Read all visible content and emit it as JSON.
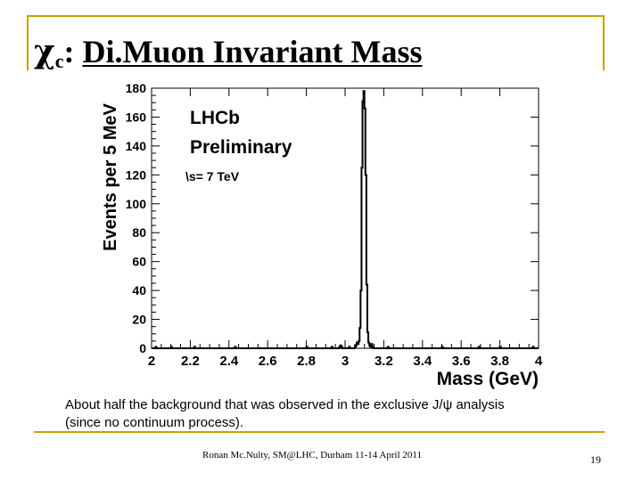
{
  "slide": {
    "title_symbol": "χ",
    "title_subscript": "c",
    "title_colon": ":",
    "title_text": "Di.Muon Invariant Mass",
    "caption_line1": "About half the background that was observed in the exclusive J/ψ analysis",
    "caption_line2": "(since no continuum process).",
    "footer": "Ronan Mc.Nulty, SM@LHC, Durham 11-14 April 2011",
    "page_number": "19"
  },
  "colors": {
    "frame": "#c8a000",
    "axis": "#000000",
    "histogram": "#000000"
  },
  "chart_data": {
    "type": "histogram",
    "ylabel": "Events per 5 MeV",
    "xlabel": "Mass (GeV)",
    "xlim": [
      2,
      4
    ],
    "ylim": [
      0,
      180
    ],
    "bin_width": 0.005,
    "xticks": [
      2,
      2.2,
      2.4,
      2.6,
      2.8,
      3,
      3.2,
      3.4,
      3.6,
      3.8,
      4
    ],
    "xtick_labels": [
      "2",
      "2.2",
      "2.4",
      "2.6",
      "2.8",
      "3",
      "3.2",
      "3.4",
      "3.6",
      "3.8",
      "4"
    ],
    "yticks": [
      0,
      20,
      40,
      60,
      80,
      100,
      120,
      140,
      160,
      180
    ],
    "ytick_labels": [
      "0",
      "20",
      "40",
      "60",
      "80",
      "100",
      "120",
      "140",
      "160",
      "180"
    ],
    "annotations": [
      "LHCb",
      "Preliminary",
      "\\s= 7 TeV"
    ],
    "bins": [
      {
        "x": 2.0,
        "y": 0
      },
      {
        "x": 2.02,
        "y": 1
      },
      {
        "x": 2.025,
        "y": 0
      },
      {
        "x": 2.1,
        "y": 1
      },
      {
        "x": 2.105,
        "y": 0
      },
      {
        "x": 2.22,
        "y": 1
      },
      {
        "x": 2.225,
        "y": 0
      },
      {
        "x": 2.43,
        "y": 1
      },
      {
        "x": 2.435,
        "y": 0
      },
      {
        "x": 2.8,
        "y": 1
      },
      {
        "x": 2.805,
        "y": 0
      },
      {
        "x": 2.93,
        "y": 1
      },
      {
        "x": 2.935,
        "y": 0
      },
      {
        "x": 2.97,
        "y": 1
      },
      {
        "x": 2.975,
        "y": 2
      },
      {
        "x": 2.98,
        "y": 1
      },
      {
        "x": 2.985,
        "y": 0
      },
      {
        "x": 3.02,
        "y": 1
      },
      {
        "x": 3.025,
        "y": 0
      },
      {
        "x": 3.05,
        "y": 1
      },
      {
        "x": 3.055,
        "y": 2
      },
      {
        "x": 3.06,
        "y": 4
      },
      {
        "x": 3.065,
        "y": 3
      },
      {
        "x": 3.07,
        "y": 5
      },
      {
        "x": 3.075,
        "y": 14
      },
      {
        "x": 3.08,
        "y": 40
      },
      {
        "x": 3.085,
        "y": 125
      },
      {
        "x": 3.09,
        "y": 171
      },
      {
        "x": 3.095,
        "y": 178
      },
      {
        "x": 3.1,
        "y": 166
      },
      {
        "x": 3.105,
        "y": 120
      },
      {
        "x": 3.11,
        "y": 44
      },
      {
        "x": 3.115,
        "y": 11
      },
      {
        "x": 3.12,
        "y": 4
      },
      {
        "x": 3.125,
        "y": 2
      },
      {
        "x": 3.13,
        "y": 1
      },
      {
        "x": 3.135,
        "y": 3
      },
      {
        "x": 3.14,
        "y": 1
      },
      {
        "x": 3.145,
        "y": 0
      },
      {
        "x": 3.22,
        "y": 1
      },
      {
        "x": 3.225,
        "y": 0
      },
      {
        "x": 3.5,
        "y": 1
      },
      {
        "x": 3.505,
        "y": 0
      },
      {
        "x": 3.69,
        "y": 1
      },
      {
        "x": 3.695,
        "y": 0
      },
      {
        "x": 3.8,
        "y": 1
      },
      {
        "x": 3.805,
        "y": 0
      },
      {
        "x": 3.97,
        "y": 1
      },
      {
        "x": 3.975,
        "y": 0
      }
    ]
  }
}
